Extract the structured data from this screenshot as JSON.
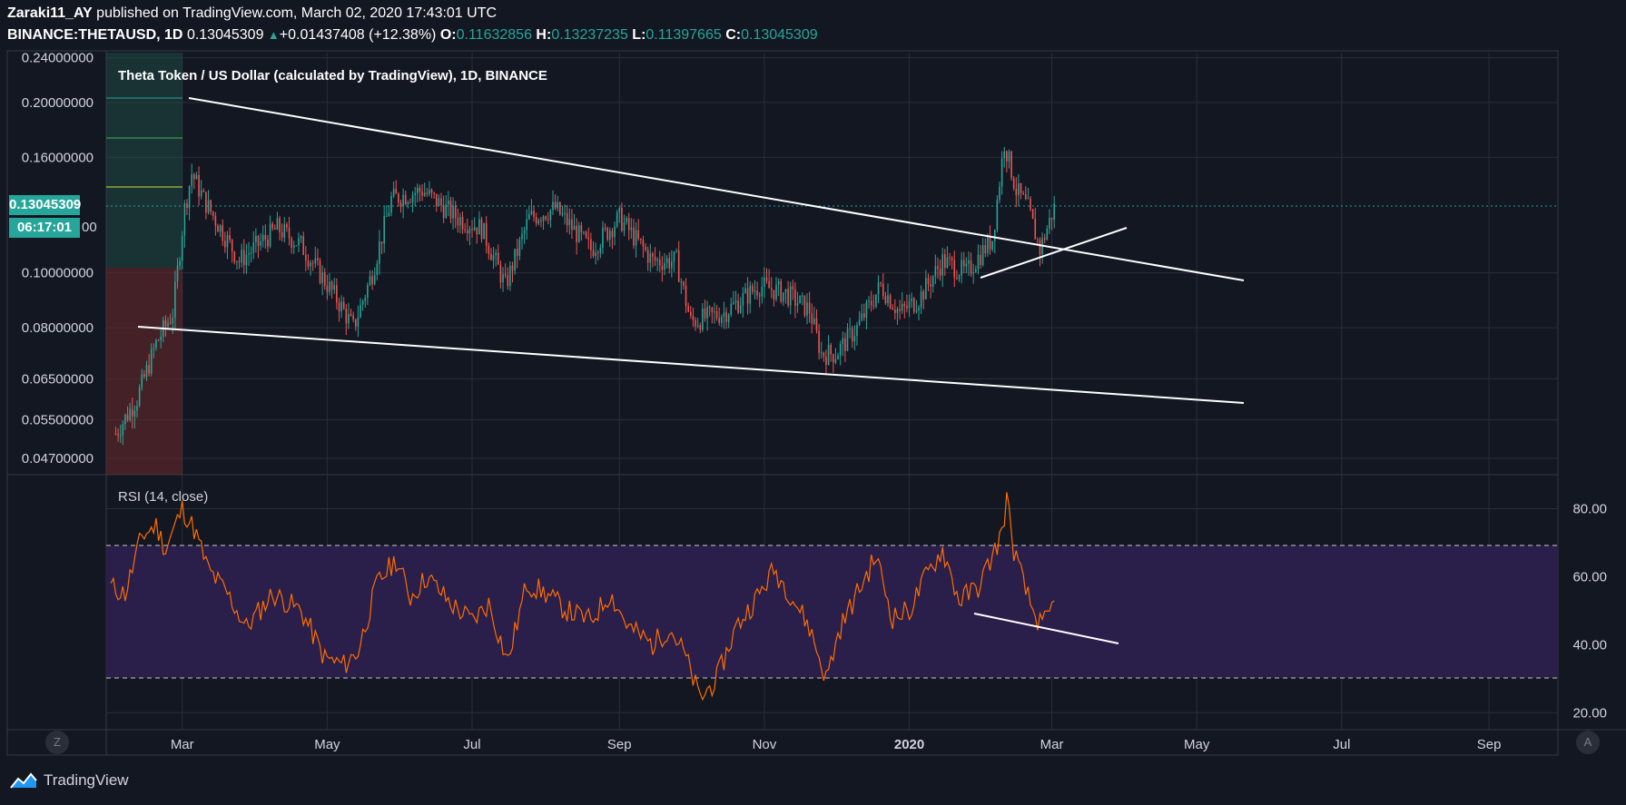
{
  "header": {
    "author": "Zaraki11_AY",
    "published": "published on TradingView.com, March 02, 2020 17:43:01 UTC",
    "symbol": "BINANCE:THETAUSD, 1D",
    "last": "0.13045309",
    "change": "+0.01437408 (+12.38%)",
    "o_label": "O:",
    "o": "0.11632856",
    "h_label": "H:",
    "h": "0.13237235",
    "l_label": "L:",
    "l": "0.11397665",
    "c_label": "C:",
    "c": "0.13045309"
  },
  "price_pane": {
    "title": "Theta Token / US Dollar (calculated by TradingView), 1D, BINANCE",
    "price_badge": "0.13045309",
    "countdown_badge": "06:17:01",
    "countdown_hidden_tick": "00",
    "y_ticks": [
      "0.24000000",
      "0.20000000",
      "0.16000000",
      "0.10000000",
      "0.08000000",
      "0.06500000",
      "0.05500000",
      "0.04700000"
    ],
    "log_scale": true
  },
  "rsi_pane": {
    "title": "RSI (14, close)",
    "y_ticks": [
      "80.00",
      "60.00",
      "40.00",
      "20.00"
    ],
    "upper_band": 70,
    "lower_band": 30
  },
  "x_ticks": [
    "Mar",
    "May",
    "Jul",
    "Sep",
    "Nov",
    "2020",
    "Mar",
    "May",
    "Jul",
    "Sep"
  ],
  "buttons": {
    "left": "Z",
    "right": "A"
  },
  "brand": "TradingView",
  "colors": {
    "up": "#26a69a",
    "down": "#ef5350",
    "rsi": "#ff6d00",
    "band_fill": "#2a1e4a",
    "background": "#131722"
  },
  "chart_data": [
    {
      "type": "candlestick",
      "title": "Theta Token / US Dollar (calculated by TradingView), 1D, BINANCE",
      "scale": "log",
      "ylim": [
        0.044,
        0.245
      ],
      "xlim": [
        "2019-01-28",
        "2020-09-30"
      ],
      "series": [
        {
          "name": "THETAUSD close (approx.)",
          "points": [
            [
              "2019-02-01",
              0.052
            ],
            [
              "2019-02-10",
              0.06
            ],
            [
              "2019-02-18",
              0.075
            ],
            [
              "2019-02-25",
              0.085
            ],
            [
              "2019-03-02",
              0.13
            ],
            [
              "2019-03-05",
              0.15
            ],
            [
              "2019-03-10",
              0.135
            ],
            [
              "2019-03-25",
              0.105
            ],
            [
              "2019-04-10",
              0.12
            ],
            [
              "2019-04-20",
              0.112
            ],
            [
              "2019-05-05",
              0.09
            ],
            [
              "2019-05-12",
              0.08
            ],
            [
              "2019-05-20",
              0.1
            ],
            [
              "2019-05-28",
              0.135
            ],
            [
              "2019-06-10",
              0.14
            ],
            [
              "2019-06-25",
              0.125
            ],
            [
              "2019-07-05",
              0.12
            ],
            [
              "2019-07-15",
              0.095
            ],
            [
              "2019-07-25",
              0.125
            ],
            [
              "2019-08-05",
              0.13
            ],
            [
              "2019-08-20",
              0.11
            ],
            [
              "2019-09-01",
              0.125
            ],
            [
              "2019-09-15",
              0.105
            ],
            [
              "2019-09-25",
              0.105
            ],
            [
              "2019-10-01",
              0.082
            ],
            [
              "2019-10-15",
              0.085
            ],
            [
              "2019-10-30",
              0.095
            ],
            [
              "2019-11-10",
              0.092
            ],
            [
              "2019-11-20",
              0.086
            ],
            [
              "2019-11-25",
              0.072
            ],
            [
              "2019-12-01",
              0.072
            ],
            [
              "2019-12-10",
              0.08
            ],
            [
              "2019-12-20",
              0.095
            ],
            [
              "2019-12-28",
              0.085
            ],
            [
              "2020-01-05",
              0.09
            ],
            [
              "2020-01-15",
              0.105
            ],
            [
              "2020-01-25",
              0.1
            ],
            [
              "2020-02-05",
              0.115
            ],
            [
              "2020-02-10",
              0.17
            ],
            [
              "2020-02-15",
              0.14
            ],
            [
              "2020-02-20",
              0.13
            ],
            [
              "2020-02-25",
              0.11
            ],
            [
              "2020-03-02",
              0.1305
            ]
          ]
        }
      ],
      "annotations": [
        "descending channel upper trendline",
        "descending channel lower trendline",
        "rising support trendline"
      ]
    },
    {
      "type": "line",
      "title": "RSI (14, close)",
      "ylim": [
        15,
        90
      ],
      "bands": [
        30,
        70
      ],
      "series": [
        {
          "name": "RSI (14, close)",
          "points": [
            [
              "2019-01-30",
              57
            ],
            [
              "2019-02-05",
              55
            ],
            [
              "2019-02-12",
              72
            ],
            [
              "2019-02-18",
              75
            ],
            [
              "2019-02-22",
              68
            ],
            [
              "2019-03-01",
              80
            ],
            [
              "2019-03-06",
              74
            ],
            [
              "2019-03-12",
              62
            ],
            [
              "2019-03-20",
              55
            ],
            [
              "2019-03-28",
              45
            ],
            [
              "2019-04-08",
              55
            ],
            [
              "2019-04-20",
              50
            ],
            [
              "2019-04-30",
              36
            ],
            [
              "2019-05-08",
              34
            ],
            [
              "2019-05-14",
              38
            ],
            [
              "2019-05-22",
              58
            ],
            [
              "2019-05-30",
              65
            ],
            [
              "2019-06-05",
              54
            ],
            [
              "2019-06-12",
              60
            ],
            [
              "2019-06-22",
              52
            ],
            [
              "2019-07-01",
              47
            ],
            [
              "2019-07-08",
              52
            ],
            [
              "2019-07-16",
              35
            ],
            [
              "2019-07-24",
              58
            ],
            [
              "2019-08-01",
              55
            ],
            [
              "2019-08-10",
              50
            ],
            [
              "2019-08-20",
              47
            ],
            [
              "2019-08-28",
              55
            ],
            [
              "2019-09-05",
              45
            ],
            [
              "2019-09-15",
              40
            ],
            [
              "2019-09-22",
              45
            ],
            [
              "2019-09-28",
              38
            ],
            [
              "2019-10-05",
              24
            ],
            [
              "2019-10-12",
              30
            ],
            [
              "2019-10-20",
              45
            ],
            [
              "2019-10-30",
              55
            ],
            [
              "2019-11-05",
              62
            ],
            [
              "2019-11-12",
              55
            ],
            [
              "2019-11-20",
              45
            ],
            [
              "2019-11-27",
              30
            ],
            [
              "2019-12-03",
              45
            ],
            [
              "2019-12-10",
              55
            ],
            [
              "2019-12-18",
              66
            ],
            [
              "2019-12-25",
              48
            ],
            [
              "2020-01-01",
              50
            ],
            [
              "2020-01-08",
              60
            ],
            [
              "2020-01-15",
              68
            ],
            [
              "2020-01-22",
              53
            ],
            [
              "2020-01-30",
              57
            ],
            [
              "2020-02-05",
              66
            ],
            [
              "2020-02-09",
              73
            ],
            [
              "2020-02-11",
              83
            ],
            [
              "2020-02-14",
              68
            ],
            [
              "2020-02-18",
              58
            ],
            [
              "2020-02-22",
              50
            ],
            [
              "2020-02-26",
              45
            ],
            [
              "2020-03-02",
              52
            ]
          ]
        }
      ],
      "annotations": [
        "falling RSI trendline"
      ]
    }
  ]
}
